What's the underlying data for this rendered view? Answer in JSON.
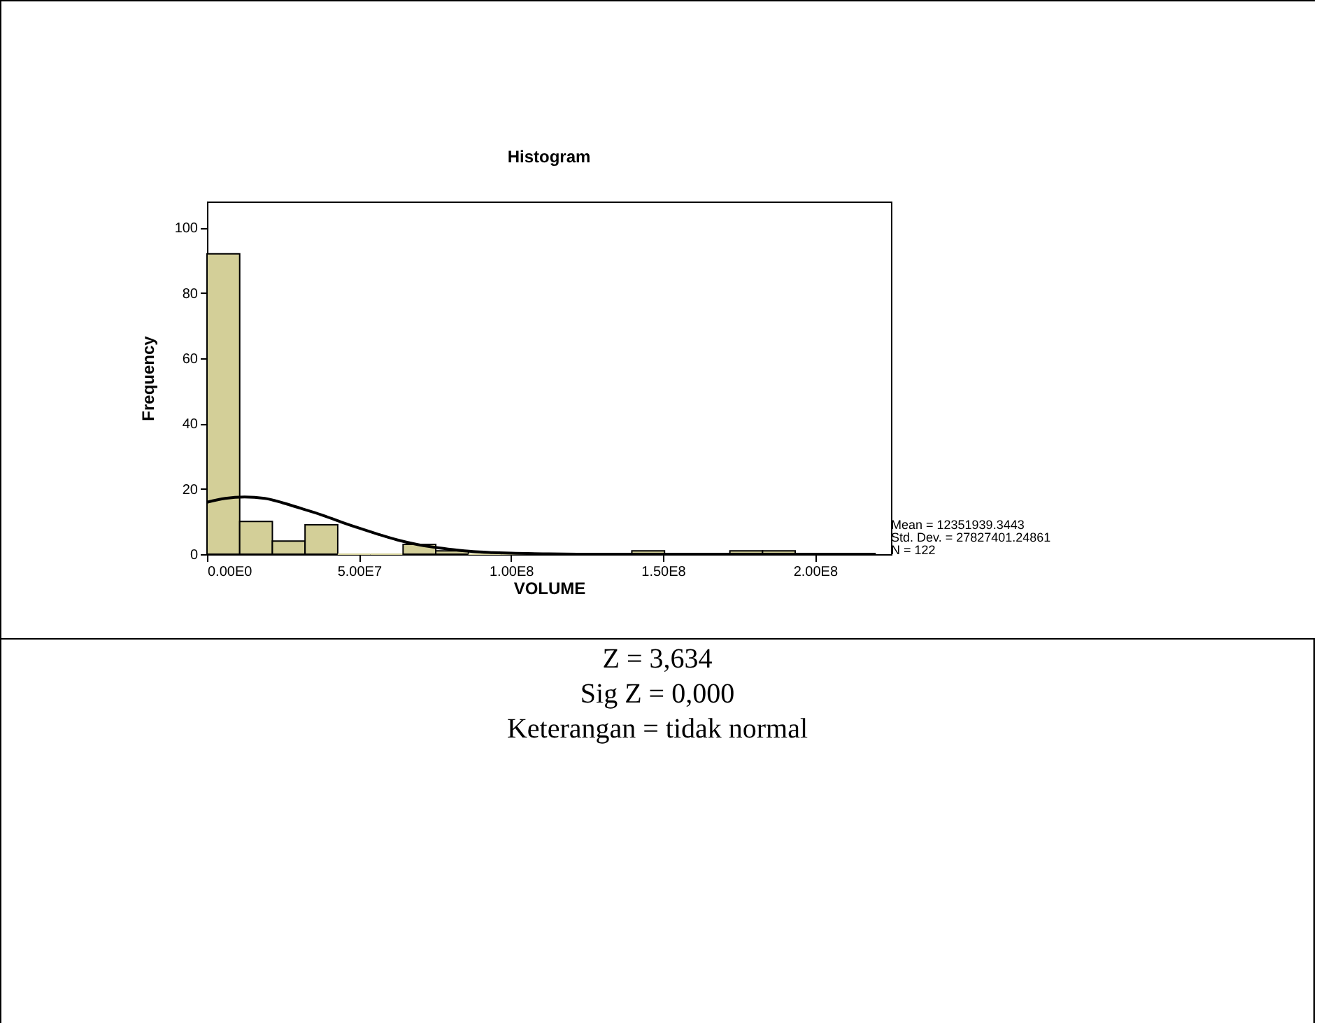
{
  "chart_data": {
    "type": "histogram",
    "title": "Histogram",
    "xlabel": "VOLUME",
    "ylabel": "Frequency",
    "bins": [
      0,
      10750000,
      21500000,
      32250000,
      43000000,
      53750000,
      64500000,
      75250000,
      86000000,
      96750000,
      107500000,
      118250000,
      129000000,
      139750000,
      150500000,
      161250000,
      172000000,
      182750000,
      193500000
    ],
    "values": [
      92,
      10,
      4,
      9,
      0,
      0,
      3,
      1,
      0,
      0,
      0,
      0,
      0,
      1,
      0,
      0,
      1,
      1
    ],
    "color": "#d3cf98",
    "series": [
      {
        "type": "line",
        "color": "#000000",
        "x": [
          0,
          6000000,
          12350000,
          19000000,
          25000000,
          31000000,
          37500000,
          44000000,
          50000000,
          56000000,
          62500000,
          69000000,
          75000000,
          81000000,
          87500000,
          94000000,
          100000000,
          112500000,
          125000000,
          150000000,
          175000000,
          200000000,
          220000000
        ],
        "values": [
          15.9,
          17.1,
          17.5,
          17.1,
          15.7,
          14.0,
          12.1,
          9.9,
          8.0,
          6.2,
          4.4,
          3.0,
          2.1,
          1.4,
          0.8,
          0.5,
          0.3,
          0.1,
          0,
          0,
          0,
          0,
          0
        ]
      }
    ],
    "xlim": [
      0,
      225000000
    ],
    "ylim": [
      0,
      108
    ],
    "xticks": [
      {
        "value": 0,
        "label": "0.00E0"
      },
      {
        "value": 50000000,
        "label": "5.00E7"
      },
      {
        "value": 100000000,
        "label": "1.00E8"
      },
      {
        "value": 150000000,
        "label": "1.50E8"
      },
      {
        "value": 200000000,
        "label": "2.00E8"
      }
    ],
    "yticks": [
      0,
      20,
      40,
      60,
      80,
      100
    ],
    "grid": false,
    "annotations": [
      "Mean = 12351939.3443",
      "Std. Dev. = 27827401.24861",
      "N = 122",
      "Z = 3,634",
      "Sig Z = 0,000",
      "Keterangan = tidak normal"
    ]
  }
}
